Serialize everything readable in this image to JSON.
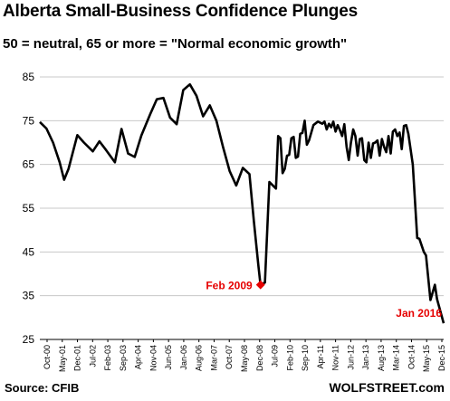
{
  "header": {
    "title": "Alberta Small-Business Confidence Plunges",
    "subtitle": "50 = neutral, 65 or more = \"Normal economic growth\""
  },
  "footer": {
    "source": "Source: CFIB",
    "brand": "WOLFSTREET.com"
  },
  "colors": {
    "line": "#000000",
    "grid": "#c8c8c8",
    "annotation": "#e60000"
  },
  "chart_data": {
    "type": "line",
    "title": "Alberta Small-Business Confidence Plunges",
    "subtitle": "50 = neutral, 65 or more = \"Normal economic growth\"",
    "ylim": [
      25,
      85
    ],
    "yticks": [
      25,
      35,
      45,
      55,
      65,
      75,
      85
    ],
    "xlim": [
      "2000-10",
      "2016-01"
    ],
    "xtick_labels": [
      "Oct-00",
      "May-01",
      "Dec-01",
      "Jul-02",
      "Feb-03",
      "Sep-03",
      "Apr-04",
      "Nov-04",
      "Jun-05",
      "Jan-06",
      "Aug-06",
      "Mar-07",
      "Oct-07",
      "May-08",
      "Dec-08",
      "Jul-09",
      "Feb-10",
      "Sep-10",
      "Apr-11",
      "Nov-11",
      "Jun-12",
      "Jan-13",
      "Aug-13",
      "Mar-14",
      "Oct-14",
      "May-15",
      "Dec-15"
    ],
    "grid": true,
    "series": [
      {
        "points": [
          [
            "2000-10",
            74.7
          ],
          [
            "2001-01",
            73.2
          ],
          [
            "2001-04",
            70.0
          ],
          [
            "2001-07",
            65.5
          ],
          [
            "2001-09",
            61.5
          ],
          [
            "2001-11",
            64.0
          ],
          [
            "2002-03",
            71.7
          ],
          [
            "2002-06",
            70.0
          ],
          [
            "2002-10",
            68.0
          ],
          [
            "2003-01",
            70.3
          ],
          [
            "2003-04",
            68.3
          ],
          [
            "2003-08",
            65.5
          ],
          [
            "2003-11",
            73.1
          ],
          [
            "2004-02",
            67.5
          ],
          [
            "2004-05",
            66.7
          ],
          [
            "2004-08",
            71.6
          ],
          [
            "2004-12",
            76.5
          ],
          [
            "2005-03",
            79.9
          ],
          [
            "2005-06",
            80.2
          ],
          [
            "2005-09",
            75.7
          ],
          [
            "2005-12",
            74.2
          ],
          [
            "2006-03",
            82.0
          ],
          [
            "2006-06",
            83.3
          ],
          [
            "2006-09",
            80.7
          ],
          [
            "2006-12",
            76.0
          ],
          [
            "2007-03",
            78.5
          ],
          [
            "2007-06",
            75.0
          ],
          [
            "2007-09",
            69.0
          ],
          [
            "2007-12",
            63.5
          ],
          [
            "2008-03",
            60.2
          ],
          [
            "2008-06",
            64.2
          ],
          [
            "2008-09",
            62.8
          ],
          [
            "2008-11",
            52.0
          ],
          [
            "2009-01",
            42.0
          ],
          [
            "2009-02",
            37.5
          ],
          [
            "2009-04",
            38.0
          ],
          [
            "2009-06",
            61.0
          ],
          [
            "2009-07",
            60.5
          ],
          [
            "2009-09",
            59.5
          ],
          [
            "2009-10",
            71.5
          ],
          [
            "2009-11",
            71.0
          ],
          [
            "2009-12",
            63.0
          ],
          [
            "2010-01",
            64.0
          ],
          [
            "2010-02",
            67.0
          ],
          [
            "2010-03",
            67.2
          ],
          [
            "2010-04",
            71.0
          ],
          [
            "2010-05",
            71.3
          ],
          [
            "2010-06",
            66.5
          ],
          [
            "2010-07",
            66.8
          ],
          [
            "2010-08",
            72.0
          ],
          [
            "2010-09",
            72.2
          ],
          [
            "2010-10",
            75.0
          ],
          [
            "2010-11",
            69.5
          ],
          [
            "2010-12",
            70.5
          ],
          [
            "2011-02",
            74.0
          ],
          [
            "2011-04",
            74.8
          ],
          [
            "2011-06",
            74.3
          ],
          [
            "2011-07",
            74.8
          ],
          [
            "2011-08",
            73.0
          ],
          [
            "2011-09",
            74.3
          ],
          [
            "2011-10",
            73.5
          ],
          [
            "2011-11",
            74.8
          ],
          [
            "2011-12",
            72.5
          ],
          [
            "2012-01",
            74.0
          ],
          [
            "2012-02",
            72.8
          ],
          [
            "2012-03",
            71.5
          ],
          [
            "2012-04",
            74.2
          ],
          [
            "2012-05",
            69.0
          ],
          [
            "2012-06",
            66.0
          ],
          [
            "2012-07",
            70.0
          ],
          [
            "2012-08",
            73.0
          ],
          [
            "2012-09",
            71.5
          ],
          [
            "2012-10",
            67.0
          ],
          [
            "2012-11",
            70.8
          ],
          [
            "2012-12",
            71.0
          ],
          [
            "2013-01",
            66.0
          ],
          [
            "2013-02",
            65.5
          ],
          [
            "2013-03",
            70.0
          ],
          [
            "2013-04",
            66.5
          ],
          [
            "2013-05",
            69.8
          ],
          [
            "2013-06",
            70.0
          ],
          [
            "2013-07",
            70.5
          ],
          [
            "2013-08",
            67.0
          ],
          [
            "2013-09",
            70.8
          ],
          [
            "2013-10",
            69.0
          ],
          [
            "2013-11",
            67.8
          ],
          [
            "2013-12",
            71.5
          ],
          [
            "2014-01",
            67.5
          ],
          [
            "2014-02",
            72.5
          ],
          [
            "2014-03",
            73.0
          ],
          [
            "2014-04",
            71.5
          ],
          [
            "2014-05",
            72.3
          ],
          [
            "2014-06",
            68.5
          ],
          [
            "2014-07",
            73.8
          ],
          [
            "2014-08",
            74.0
          ],
          [
            "2014-09",
            72.0
          ],
          [
            "2014-11",
            65.0
          ],
          [
            "2015-01",
            48.2
          ],
          [
            "2015-02",
            48.0
          ],
          [
            "2015-04",
            45.0
          ],
          [
            "2015-05",
            44.2
          ],
          [
            "2015-07",
            34.0
          ],
          [
            "2015-09",
            37.5
          ],
          [
            "2015-10",
            34.2
          ],
          [
            "2016-01",
            28.7
          ]
        ]
      }
    ],
    "annotations": [
      {
        "text": "Feb 2009",
        "x": "2009-02",
        "y": 37.5,
        "marker": "diamond",
        "color": "#e60000"
      },
      {
        "text": "Jan 2016",
        "x": "2016-01",
        "y": 28.7,
        "marker": "none",
        "color": "#e60000"
      }
    ]
  }
}
